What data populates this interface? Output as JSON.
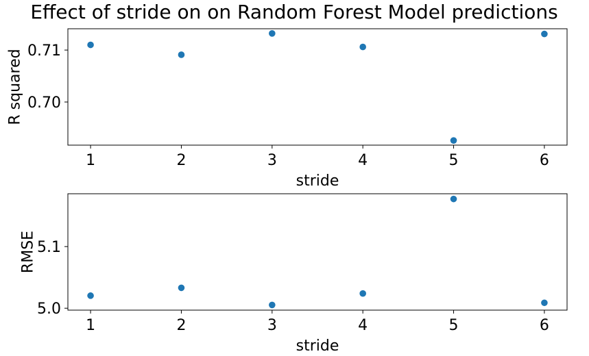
{
  "chart_data": {
    "title": "Effect of stride on on Random Forest Model predictions",
    "marker_color": "#1f77b4",
    "subplots": [
      {
        "type": "scatter",
        "xlabel": "stride",
        "ylabel": "R squared",
        "x": [
          1,
          2,
          3,
          4,
          5,
          6
        ],
        "y": [
          0.711,
          0.7091,
          0.7132,
          0.7106,
          0.6926,
          0.7131
        ],
        "xlim": [
          0.75,
          6.25
        ],
        "ylim": [
          0.6917,
          0.7141
        ],
        "xticks": [
          1,
          2,
          3,
          4,
          5,
          6
        ],
        "xtick_labels": [
          "1",
          "2",
          "3",
          "4",
          "5",
          "6"
        ],
        "yticks": [
          0.7,
          0.71
        ],
        "ytick_labels": [
          "0.70",
          "0.71"
        ],
        "grid": false
      },
      {
        "type": "scatter",
        "xlabel": "stride",
        "ylabel": "RMSE",
        "x": [
          1,
          2,
          3,
          4,
          5,
          6
        ],
        "y": [
          5.0204,
          5.0331,
          5.0053,
          5.0239,
          5.1772,
          5.0088
        ],
        "xlim": [
          0.75,
          6.25
        ],
        "ylim": [
          4.9969,
          5.1857
        ],
        "xticks": [
          1,
          2,
          3,
          4,
          5,
          6
        ],
        "xtick_labels": [
          "1",
          "2",
          "3",
          "4",
          "5",
          "6"
        ],
        "yticks": [
          5.0,
          5.1
        ],
        "ytick_labels": [
          "5.0",
          "5.1"
        ],
        "grid": false
      }
    ]
  }
}
